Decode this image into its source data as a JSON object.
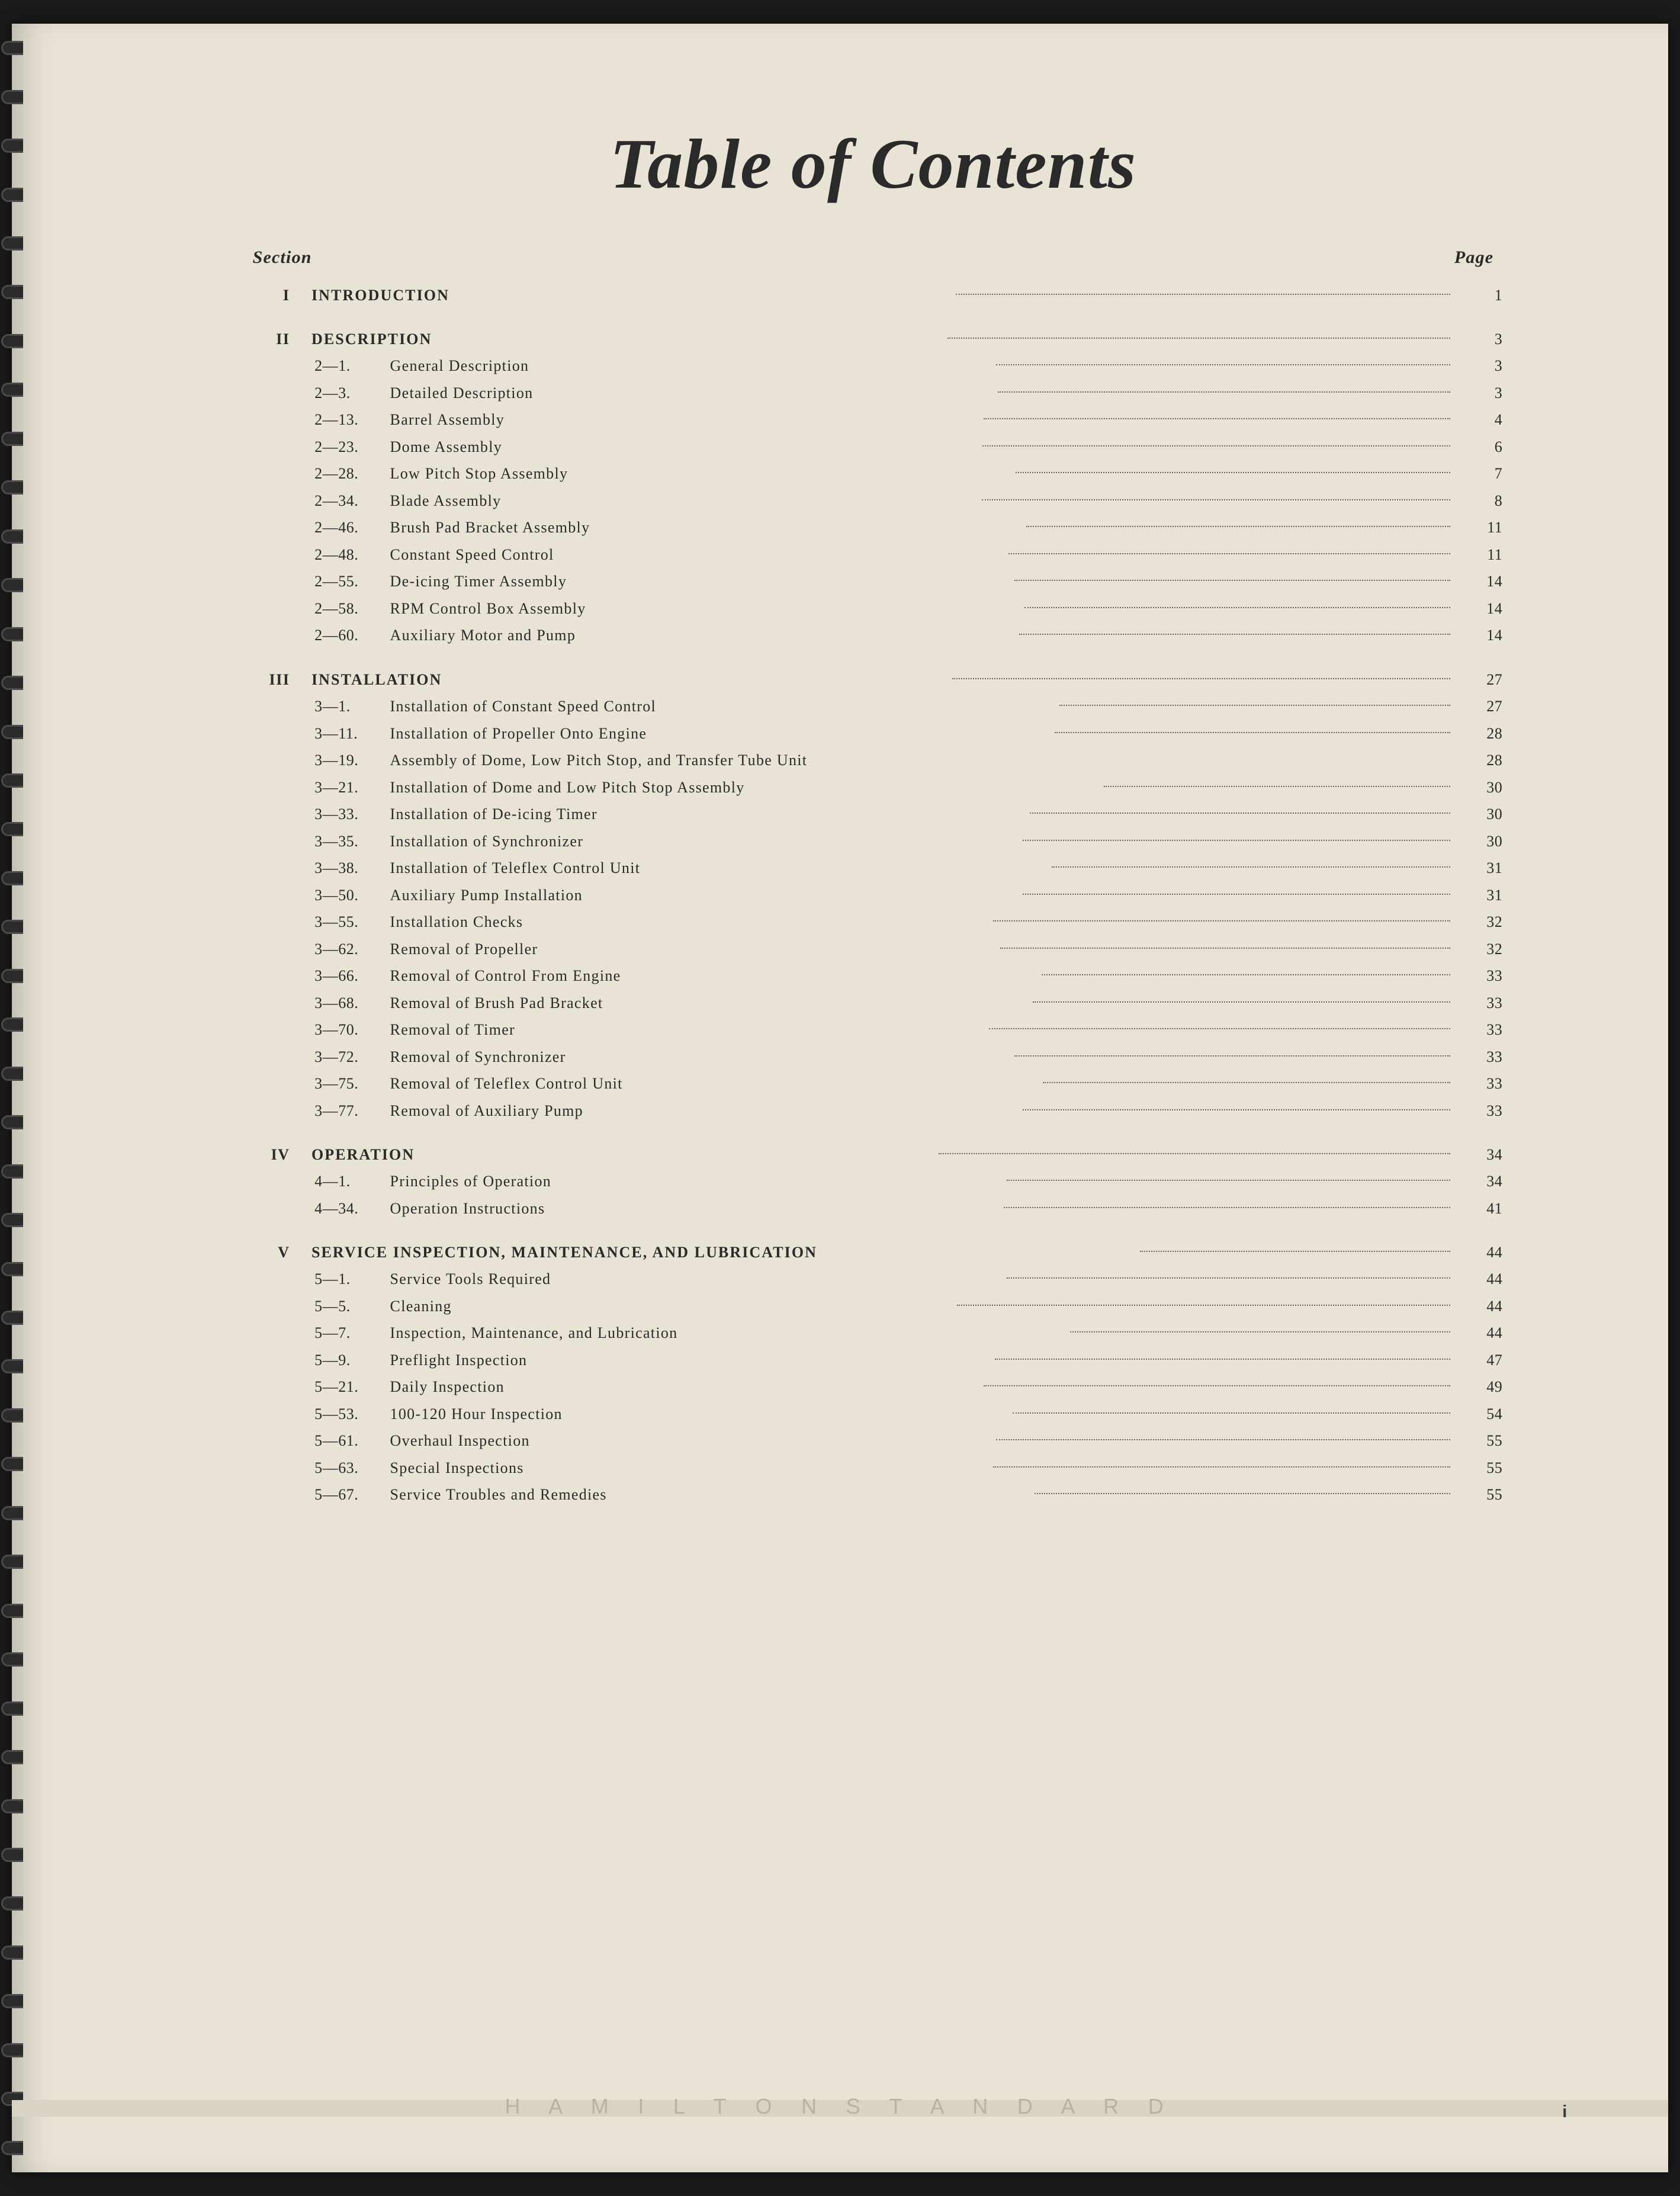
{
  "title": "Table of Contents",
  "header": {
    "left": "Section",
    "right": "Page"
  },
  "page_number_footer": "i",
  "footer_brand": "H A M I L T O N   S T A N D A R D",
  "colors": {
    "paper": "#e8e3d5",
    "ink": "#2a2a2a",
    "dot": "#6b6658",
    "footer_band": "#d9d3c3",
    "footer_text": "#b8b2a2"
  },
  "typography": {
    "title_font": "Brush Script MT, cursive",
    "title_fontsize_vw": 5.2,
    "body_font": "Times New Roman, serif",
    "body_fontsize_vw": 1.18,
    "header_fontsize_vw": 1.35,
    "footer_font": "Gill Sans, sans-serif",
    "row_lineheight": 1.75
  },
  "sections": [
    {
      "roman": "I",
      "heading": "INTRODUCTION",
      "page": "1",
      "items": []
    },
    {
      "roman": "II",
      "heading": "DESCRIPTION",
      "page": "3",
      "items": [
        {
          "para": "2—1.",
          "title": "General Description",
          "page": "3"
        },
        {
          "para": "2—3.",
          "title": "Detailed Description",
          "page": "3"
        },
        {
          "para": "2—13.",
          "title": "Barrel Assembly",
          "page": "4"
        },
        {
          "para": "2—23.",
          "title": "Dome Assembly",
          "page": "6"
        },
        {
          "para": "2—28.",
          "title": "Low Pitch Stop Assembly",
          "page": "7"
        },
        {
          "para": "2—34.",
          "title": "Blade Assembly",
          "page": "8"
        },
        {
          "para": "2—46.",
          "title": "Brush Pad Bracket Assembly",
          "page": "11"
        },
        {
          "para": "2—48.",
          "title": "Constant Speed Control",
          "page": "11"
        },
        {
          "para": "2—55.",
          "title": "De-icing Timer Assembly",
          "page": "14"
        },
        {
          "para": "2—58.",
          "title": "RPM Control Box Assembly",
          "page": "14"
        },
        {
          "para": "2—60.",
          "title": "Auxiliary Motor and Pump",
          "page": "14"
        }
      ]
    },
    {
      "roman": "III",
      "heading": "INSTALLATION",
      "page": "27",
      "items": [
        {
          "para": "3—1.",
          "title": "Installation of Constant Speed Control",
          "page": "27"
        },
        {
          "para": "3—11.",
          "title": "Installation of Propeller Onto Engine",
          "page": "28"
        },
        {
          "para": "3—19.",
          "title": "Assembly of Dome, Low Pitch Stop, and Transfer Tube Unit",
          "page": "28",
          "no_leader": true
        },
        {
          "para": "3—21.",
          "title": "Installation of Dome and Low Pitch Stop Assembly",
          "page": "30"
        },
        {
          "para": "3—33.",
          "title": "Installation of De-icing Timer",
          "page": "30"
        },
        {
          "para": "3—35.",
          "title": "Installation of Synchronizer",
          "page": "30"
        },
        {
          "para": "3—38.",
          "title": "Installation of Teleflex Control Unit",
          "page": "31"
        },
        {
          "para": "3—50.",
          "title": "Auxiliary Pump Installation",
          "page": "31"
        },
        {
          "para": "3—55.",
          "title": "Installation Checks",
          "page": "32"
        },
        {
          "para": "3—62.",
          "title": "Removal of Propeller",
          "page": "32"
        },
        {
          "para": "3—66.",
          "title": "Removal of Control From Engine",
          "page": "33"
        },
        {
          "para": "3—68.",
          "title": "Removal of Brush Pad Bracket",
          "page": "33"
        },
        {
          "para": "3—70.",
          "title": "Removal of Timer",
          "page": "33"
        },
        {
          "para": "3—72.",
          "title": "Removal of Synchronizer",
          "page": "33"
        },
        {
          "para": "3—75.",
          "title": "Removal of Teleflex Control Unit",
          "page": "33"
        },
        {
          "para": "3—77.",
          "title": "Removal of Auxiliary Pump",
          "page": "33"
        }
      ]
    },
    {
      "roman": "IV",
      "heading": "OPERATION",
      "page": "34",
      "items": [
        {
          "para": "4—1.",
          "title": "Principles of Operation",
          "page": "34"
        },
        {
          "para": "4—34.",
          "title": "Operation Instructions",
          "page": "41"
        }
      ]
    },
    {
      "roman": "V",
      "heading": "SERVICE INSPECTION, MAINTENANCE, AND LUBRICATION",
      "page": "44",
      "items": [
        {
          "para": "5—1.",
          "title": "Service Tools Required",
          "page": "44"
        },
        {
          "para": "5—5.",
          "title": "Cleaning",
          "page": "44"
        },
        {
          "para": "5—7.",
          "title": "Inspection, Maintenance, and Lubrication",
          "page": "44"
        },
        {
          "para": "5—9.",
          "title": "Preflight Inspection",
          "page": "47"
        },
        {
          "para": "5—21.",
          "title": "Daily Inspection",
          "page": "49"
        },
        {
          "para": "5—53.",
          "title": "100-120 Hour Inspection",
          "page": "54"
        },
        {
          "para": "5—61.",
          "title": "Overhaul Inspection",
          "page": "55"
        },
        {
          "para": "5—63.",
          "title": "Special Inspections",
          "page": "55"
        },
        {
          "para": "5—67.",
          "title": "Service Troubles and Remedies",
          "page": "55"
        }
      ]
    }
  ]
}
